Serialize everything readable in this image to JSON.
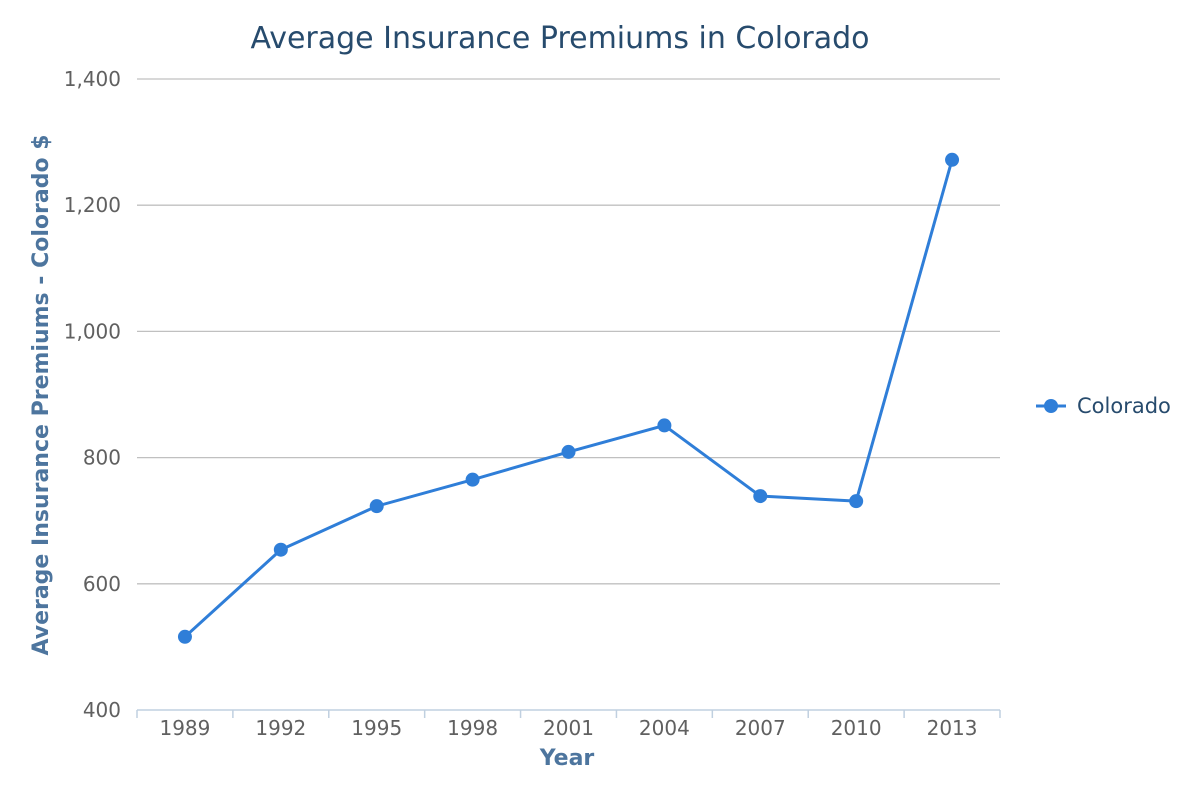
{
  "chart_data": {
    "type": "line",
    "title": "Average Insurance Premiums in Colorado",
    "xlabel": "Year",
    "ylabel": "Average Insurance Premiums - Colorado $",
    "categories": [
      "1989",
      "1992",
      "1995",
      "1998",
      "2001",
      "2004",
      "2007",
      "2010",
      "2013"
    ],
    "series": [
      {
        "name": "Colorado",
        "color": "#2f7ed8",
        "values": [
          516,
          654,
          723,
          765,
          809,
          851,
          739,
          731,
          1272
        ]
      }
    ],
    "ylim": [
      400,
      1400
    ],
    "yticks": [
      400,
      600,
      800,
      1000,
      1200,
      1400
    ],
    "ytick_labels": [
      "400",
      "600",
      "800",
      "1,000",
      "1,200",
      "1,400"
    ],
    "grid": true,
    "legend_position": "right"
  }
}
